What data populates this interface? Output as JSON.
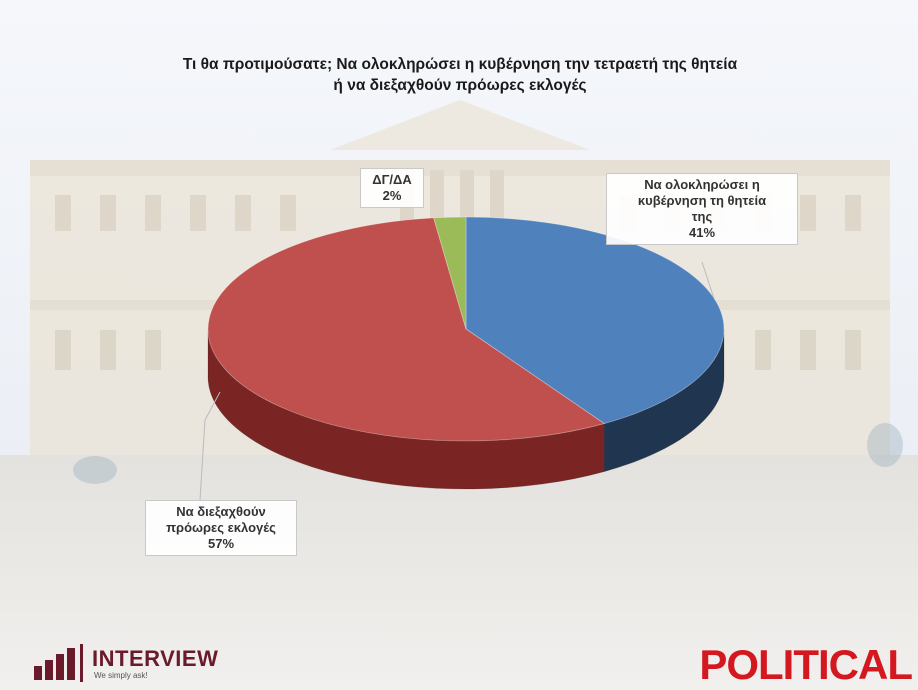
{
  "title_lines": [
    "Τι θα προτιμούσατε; Να ολοκληρώσει η κυβέρνηση την τετραετή της θητεία",
    "ή να διεξαχθούν πρόωρες εκλογές"
  ],
  "chart_data": {
    "type": "pie",
    "title": "Τι θα προτιμούσατε; Να ολοκληρώσει η κυβέρνηση την τετραετή της θητεία ή να διεξαχθούν πρόωρες εκλογές",
    "three_d": true,
    "slices": [
      {
        "label_lines": [
          "Να ολοκληρώσει η",
          "κυβέρνηση τη θητεία",
          "της"
        ],
        "value": 41,
        "value_label": "41%",
        "color": "#4f81bd",
        "side_color": "#1f3550"
      },
      {
        "label_lines": [
          "Να διεξαχθούν",
          "πρόωρες εκλογές"
        ],
        "value": 57,
        "value_label": "57%",
        "color": "#c0504d",
        "side_color": "#7a2523"
      },
      {
        "label_lines": [
          "ΔΓ/ΔΑ"
        ],
        "value": 2,
        "value_label": "2%",
        "color": "#9bbb59",
        "side_color": "#5d7a2a"
      }
    ]
  },
  "brand": {
    "interview_name": "INTERVIEW",
    "interview_tagline": "We simply ask!",
    "political": "POLITICAL",
    "interview_color": "#6a1a2a",
    "political_color": "#d4181f"
  }
}
